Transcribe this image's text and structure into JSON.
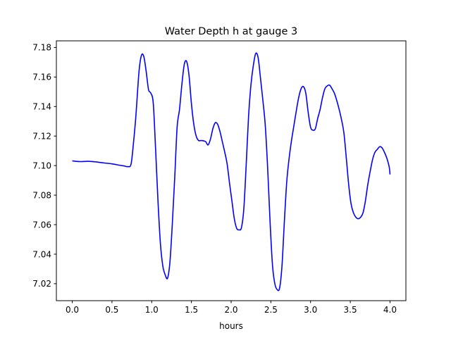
{
  "chart_data": {
    "type": "line",
    "title": "Water Depth h at gauge 3",
    "xlabel": "hours",
    "ylabel": "",
    "xlim": [
      -0.2,
      4.2
    ],
    "ylim": [
      7.0085,
      7.1845
    ],
    "xticks": [
      0.0,
      0.5,
      1.0,
      1.5,
      2.0,
      2.5,
      3.0,
      3.5,
      4.0
    ],
    "xtick_labels": [
      "0.0",
      "0.5",
      "1.0",
      "1.5",
      "2.0",
      "2.5",
      "3.0",
      "3.5",
      "4.0"
    ],
    "yticks": [
      7.02,
      7.04,
      7.06,
      7.08,
      7.1,
      7.12,
      7.14,
      7.16,
      7.18
    ],
    "ytick_labels": [
      "7.02",
      "7.04",
      "7.06",
      "7.08",
      "7.10",
      "7.12",
      "7.14",
      "7.16",
      "7.18"
    ],
    "grid": false,
    "series": [
      {
        "color": "#0000ff",
        "x": [
          0.0,
          0.1,
          0.2,
          0.3,
          0.4,
          0.5,
          0.6,
          0.65,
          0.7,
          0.74,
          0.77,
          0.8,
          0.84,
          0.87,
          0.9,
          0.93,
          0.96,
          0.99,
          1.02,
          1.05,
          1.08,
          1.11,
          1.14,
          1.17,
          1.2,
          1.23,
          1.26,
          1.29,
          1.32,
          1.35,
          1.38,
          1.41,
          1.44,
          1.47,
          1.5,
          1.53,
          1.56,
          1.59,
          1.62,
          1.65,
          1.68,
          1.71,
          1.74,
          1.77,
          1.8,
          1.83,
          1.86,
          1.89,
          1.92,
          1.95,
          1.98,
          2.01,
          2.04,
          2.07,
          2.1,
          2.13,
          2.16,
          2.19,
          2.22,
          2.25,
          2.28,
          2.31,
          2.34,
          2.37,
          2.4,
          2.43,
          2.46,
          2.49,
          2.52,
          2.55,
          2.58,
          2.61,
          2.64,
          2.67,
          2.7,
          2.73,
          2.76,
          2.79,
          2.82,
          2.85,
          2.88,
          2.91,
          2.94,
          2.97,
          3.0,
          3.03,
          3.06,
          3.09,
          3.12,
          3.15,
          3.18,
          3.21,
          3.24,
          3.27,
          3.3,
          3.33,
          3.36,
          3.39,
          3.42,
          3.45,
          3.48,
          3.51,
          3.54,
          3.57,
          3.6,
          3.63,
          3.66,
          3.69,
          3.72,
          3.75,
          3.78,
          3.81,
          3.84,
          3.87,
          3.9,
          3.93,
          3.96,
          3.99,
          4.0
        ],
        "y": [
          7.1032,
          7.1027,
          7.1029,
          7.1025,
          7.1018,
          7.1012,
          7.1002,
          7.0998,
          7.0993,
          7.101,
          7.115,
          7.133,
          7.1635,
          7.1745,
          7.174,
          7.164,
          7.1515,
          7.149,
          7.142,
          7.11,
          7.075,
          7.047,
          7.032,
          7.026,
          7.0238,
          7.035,
          7.061,
          7.092,
          7.126,
          7.138,
          7.155,
          7.1685,
          7.1705,
          7.161,
          7.142,
          7.128,
          7.12,
          7.117,
          7.117,
          7.1168,
          7.1162,
          7.114,
          7.118,
          7.125,
          7.129,
          7.128,
          7.123,
          7.116,
          7.109,
          7.101,
          7.088,
          7.076,
          7.064,
          7.0575,
          7.0565,
          7.058,
          7.071,
          7.101,
          7.134,
          7.155,
          7.168,
          7.176,
          7.173,
          7.159,
          7.144,
          7.127,
          7.098,
          7.062,
          7.033,
          7.02,
          7.016,
          7.017,
          7.032,
          7.062,
          7.089,
          7.105,
          7.117,
          7.127,
          7.137,
          7.146,
          7.152,
          7.1535,
          7.149,
          7.136,
          7.126,
          7.124,
          7.125,
          7.132,
          7.138,
          7.146,
          7.152,
          7.154,
          7.1545,
          7.152,
          7.149,
          7.144,
          7.138,
          7.131,
          7.122,
          7.105,
          7.087,
          7.074,
          7.068,
          7.065,
          7.064,
          7.065,
          7.068,
          7.076,
          7.087,
          7.096,
          7.104,
          7.109,
          7.111,
          7.1128,
          7.112,
          7.109,
          7.105,
          7.099,
          7.094
        ]
      }
    ]
  }
}
